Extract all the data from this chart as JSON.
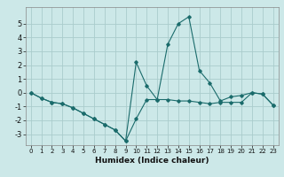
{
  "title": "",
  "xlabel": "Humidex (Indice chaleur)",
  "background_color": "#cce8e8",
  "grid_color": "#aacccc",
  "line_color": "#1a6b6b",
  "x_values": [
    0,
    1,
    2,
    3,
    4,
    5,
    6,
    7,
    8,
    9,
    10,
    11,
    12,
    13,
    14,
    15,
    16,
    17,
    18,
    19,
    20,
    21,
    22,
    23
  ],
  "series1": [
    0.0,
    -0.4,
    -0.7,
    -0.8,
    -1.1,
    -1.5,
    -1.9,
    -2.3,
    -2.7,
    -3.5,
    -1.9,
    -0.5,
    -0.5,
    -0.5,
    -0.6,
    -0.6,
    -0.7,
    -0.8,
    -0.7,
    -0.7,
    -0.7,
    0.0,
    -0.1,
    -0.9
  ],
  "series2": [
    0.0,
    -0.4,
    -0.7,
    -0.8,
    -1.1,
    -1.5,
    -1.9,
    -2.3,
    -2.7,
    -3.5,
    2.2,
    0.5,
    -0.5,
    3.5,
    5.0,
    5.5,
    1.6,
    0.7,
    -0.6,
    -0.3,
    -0.2,
    0.0,
    -0.1,
    -0.9
  ],
  "xlim": [
    -0.5,
    23.5
  ],
  "ylim": [
    -3.8,
    6.2
  ],
  "yticks": [
    -3,
    -2,
    -1,
    0,
    1,
    2,
    3,
    4,
    5
  ],
  "xticks": [
    0,
    1,
    2,
    3,
    4,
    5,
    6,
    7,
    8,
    9,
    10,
    11,
    12,
    13,
    14,
    15,
    16,
    17,
    18,
    19,
    20,
    21,
    22,
    23
  ]
}
